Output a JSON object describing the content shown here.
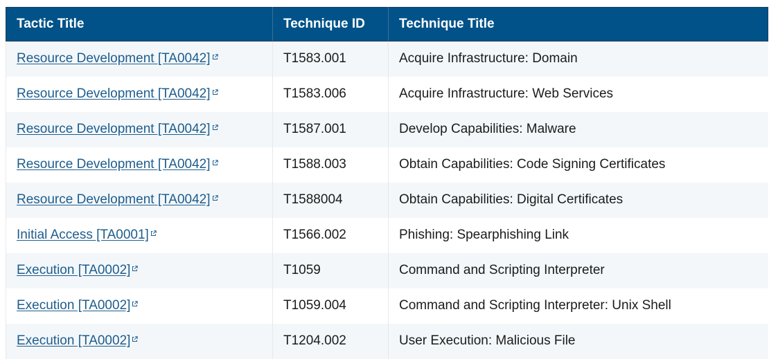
{
  "table": {
    "headers": {
      "tactic": "Tactic Title",
      "technique_id": "Technique ID",
      "technique_title": "Technique Title"
    },
    "rows": [
      {
        "tactic": "Resource Development [TA0042]",
        "technique_id": "T1583.001",
        "technique_title": "Acquire Infrastructure: Domain"
      },
      {
        "tactic": "Resource Development [TA0042]",
        "technique_id": "T1583.006",
        "technique_title": "Acquire Infrastructure: Web Services"
      },
      {
        "tactic": "Resource Development [TA0042]",
        "technique_id": "T1587.001",
        "technique_title": "Develop Capabilities: Malware"
      },
      {
        "tactic": "Resource Development [TA0042]",
        "technique_id": "T1588.003",
        "technique_title": "Obtain Capabilities: Code Signing Certificates"
      },
      {
        "tactic": "Resource Development [TA0042]",
        "technique_id": "T1588004",
        "technique_title": "Obtain Capabilities: Digital Certificates"
      },
      {
        "tactic": "Initial Access [TA0001]",
        "technique_id": "T1566.002",
        "technique_title": "Phishing: Spearphishing Link"
      },
      {
        "tactic": "Execution [TA0002]",
        "technique_id": "T1059",
        "technique_title": "Command and Scripting Interpreter"
      },
      {
        "tactic": "Execution [TA0002]",
        "technique_id": "T1059.004",
        "technique_title": "Command and Scripting Interpreter: Unix Shell"
      },
      {
        "tactic": "Execution [TA0002]",
        "technique_id": "T1204.002",
        "technique_title": "User Execution: Malicious File"
      }
    ]
  },
  "colors": {
    "header_bg": "#005288",
    "link": "#1d5d8d",
    "stripe": "#f3f7fa"
  },
  "icons": {
    "link": "external-link-icon"
  }
}
